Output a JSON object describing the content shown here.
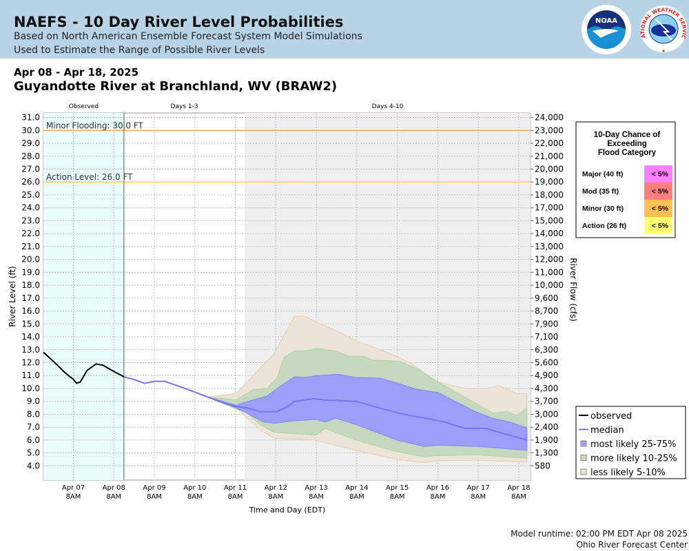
{
  "header": {
    "title": "NAEFS - 10 Day River Level Probabilities",
    "subtitle1": "Based on North American Ensemble Forecast System Model Simulations",
    "subtitle2": "Used to Estimate the Range of Possible River Levels",
    "logo1_text": "NOAA",
    "logo2_text": "NATIONAL WEATHER SERVICE"
  },
  "date_range": "Apr 08 - Apr 18, 2025",
  "station": "Guyandotte River at Branchland, WV (BRAW2)",
  "footer": {
    "runtime": "Model runtime: 02:00 PM EDT Apr 08 2025",
    "center": "Ohio River Forecast Center"
  },
  "colors": {
    "observed": "#000000",
    "median": "#7474f2",
    "band_25_75": "#9d9ef8",
    "band_10_25": "#c6d9c0",
    "band_5_10": "#ede4d9",
    "minor": "#f7a04a",
    "action": "#f5d21c",
    "obs_bg": "#e9fdfd",
    "days410_bg": "#efefef"
  },
  "chart_data": {
    "type": "area",
    "x_unit": "days after Apr 07 8AM EDT",
    "xlabel": "Time and Day (EDT)",
    "ylabel": "River Level (ft)",
    "y2label": "River Flow (cfs)",
    "ylim": [
      2.9,
      31.35
    ],
    "xlim": [
      -0.74,
      11.29
    ],
    "period_labels": [
      {
        "label": "Observed",
        "from": -0.74,
        "to": 1.25
      },
      {
        "label": "Days 1-3",
        "from": 1.25,
        "to": 4.23
      },
      {
        "label": "Days 4-10",
        "from": 4.23,
        "to": 11.29
      }
    ],
    "x_ticks": [
      {
        "d": 0,
        "l1": "Apr 07",
        "l2": "8AM"
      },
      {
        "d": 1,
        "l1": "Apr 08",
        "l2": "8AM"
      },
      {
        "d": 2,
        "l1": "Apr 09",
        "l2": "8AM"
      },
      {
        "d": 3,
        "l1": "Apr 10",
        "l2": "8AM"
      },
      {
        "d": 4,
        "l1": "Apr 11",
        "l2": "8AM"
      },
      {
        "d": 5,
        "l1": "Apr 12",
        "l2": "8AM"
      },
      {
        "d": 6,
        "l1": "Apr 13",
        "l2": "8AM"
      },
      {
        "d": 7,
        "l1": "Apr 14",
        "l2": "8AM"
      },
      {
        "d": 8,
        "l1": "Apr 15",
        "l2": "8AM"
      },
      {
        "d": 9,
        "l1": "Apr 16",
        "l2": "8AM"
      },
      {
        "d": 10,
        "l1": "Apr 17",
        "l2": "8AM"
      },
      {
        "d": 11,
        "l1": "Apr 18",
        "l2": "8AM"
      }
    ],
    "y_ticks": [
      "31.0",
      "30.0",
      "29.0",
      "28.0",
      "27.0",
      "26.0",
      "25.0",
      "24.0",
      "23.0",
      "22.0",
      "21.0",
      "20.0",
      "19.0",
      "18.0",
      "17.0",
      "16.0",
      "15.0",
      "14.0",
      "13.0",
      "12.0",
      "11.0",
      "10.0",
      "9.0",
      "8.0",
      "7.0",
      "6.0",
      "5.0",
      "4.0"
    ],
    "y2_ticks": [
      "24,000",
      "23,000",
      "22,000",
      "21,000",
      "20,000",
      "19,000",
      "18,000",
      "17,000",
      "15,000",
      "14,000",
      "13,000",
      "12,000",
      "11,000",
      "10,000",
      "9,600",
      "8,700",
      "7,900",
      "7,100",
      "6,300",
      "5,600",
      "4,900",
      "4,300",
      "3,700",
      "3,000",
      "2,400",
      "1,900",
      "1,300",
      "580"
    ],
    "thresholds": [
      {
        "label": "Minor Flooding: 30.0 FT",
        "value": 30.0,
        "color": "#f7a04a"
      },
      {
        "label": "Action Level: 26.0 FT",
        "value": 26.0,
        "color": "#f5d21c"
      }
    ],
    "observed": [
      [
        -0.74,
        12.8
      ],
      [
        -0.46,
        12.0
      ],
      [
        -0.2,
        11.2
      ],
      [
        0,
        10.7
      ],
      [
        0.08,
        10.4
      ],
      [
        0.17,
        10.5
      ],
      [
        0.34,
        11.4
      ],
      [
        0.56,
        11.9
      ],
      [
        0.73,
        11.8
      ],
      [
        1.01,
        11.3
      ],
      [
        1.25,
        10.9
      ]
    ],
    "median": [
      [
        1.25,
        10.9
      ],
      [
        1.49,
        10.7
      ],
      [
        1.76,
        10.4
      ],
      [
        2.01,
        10.55
      ],
      [
        2.25,
        10.55
      ],
      [
        2.67,
        10.1
      ],
      [
        3.01,
        9.7
      ],
      [
        3.34,
        9.3
      ],
      [
        3.77,
        8.8
      ],
      [
        4.02,
        8.6
      ],
      [
        4.27,
        8.5
      ],
      [
        4.61,
        8.2
      ],
      [
        5.03,
        8.2
      ],
      [
        5.29,
        8.6
      ],
      [
        5.46,
        9.0
      ],
      [
        5.96,
        9.2
      ],
      [
        6.22,
        9.1
      ],
      [
        6.98,
        9.0
      ],
      [
        7.65,
        8.4
      ],
      [
        8.16,
        8.0
      ],
      [
        8.67,
        7.7
      ],
      [
        9.17,
        7.4
      ],
      [
        9.68,
        6.9
      ],
      [
        10.19,
        6.9
      ],
      [
        10.52,
        6.6
      ],
      [
        11.2,
        6.0
      ]
    ],
    "bands": [
      {
        "name": "less likely 5-10%",
        "upper": [
          [
            3.3,
            9.35
          ],
          [
            4.02,
            9.6
          ],
          [
            4.95,
            12.66
          ],
          [
            5.46,
            15.6
          ],
          [
            5.71,
            15.6
          ],
          [
            5.96,
            15.2
          ],
          [
            6.47,
            14.5
          ],
          [
            6.98,
            13.7
          ],
          [
            7.4,
            13.2
          ],
          [
            7.91,
            12.6
          ],
          [
            8.33,
            11.95
          ],
          [
            9.0,
            10.5
          ],
          [
            9.68,
            10.0
          ],
          [
            10.15,
            10.0
          ],
          [
            10.52,
            10.2
          ],
          [
            10.95,
            9.6
          ],
          [
            11.2,
            9.6
          ]
        ],
        "lower": [
          [
            3.3,
            9.35
          ],
          [
            4.02,
            8.5
          ],
          [
            4.61,
            6.8
          ],
          [
            4.95,
            6.15
          ],
          [
            5.96,
            6.0
          ],
          [
            6.98,
            5.2
          ],
          [
            7.99,
            4.5
          ],
          [
            8.67,
            4.25
          ],
          [
            9.0,
            4.4
          ],
          [
            10.02,
            4.45
          ],
          [
            11.2,
            4.3
          ]
        ]
      },
      {
        "name": "more likely 10-25%",
        "upper": [
          [
            3.3,
            9.35
          ],
          [
            4.02,
            9.1
          ],
          [
            4.44,
            9.9
          ],
          [
            4.78,
            10.0
          ],
          [
            5.03,
            10.8
          ],
          [
            5.2,
            12.4
          ],
          [
            5.46,
            12.9
          ],
          [
            5.71,
            12.9
          ],
          [
            6.0,
            13.1
          ],
          [
            6.47,
            12.9
          ],
          [
            6.81,
            12.5
          ],
          [
            7.15,
            12.5
          ],
          [
            7.4,
            12.2
          ],
          [
            8.07,
            12.1
          ],
          [
            8.5,
            11.5
          ],
          [
            9.0,
            10.5
          ],
          [
            9.51,
            9.6
          ],
          [
            10.02,
            8.7
          ],
          [
            10.35,
            8.1
          ],
          [
            10.69,
            8.2
          ],
          [
            10.95,
            7.9
          ],
          [
            11.2,
            8.5
          ]
        ],
        "lower": [
          [
            3.3,
            9.35
          ],
          [
            4.02,
            8.4
          ],
          [
            4.27,
            8.2
          ],
          [
            4.61,
            7.2
          ],
          [
            4.95,
            6.6
          ],
          [
            5.46,
            6.5
          ],
          [
            6.0,
            6.4
          ],
          [
            6.22,
            6.9
          ],
          [
            6.98,
            6.0
          ],
          [
            7.99,
            5.1
          ],
          [
            8.67,
            4.7
          ],
          [
            9.0,
            4.8
          ],
          [
            10.02,
            4.85
          ],
          [
            11.2,
            4.6
          ]
        ]
      },
      {
        "name": "most likely 25-75%",
        "upper": [
          [
            3.3,
            9.35
          ],
          [
            4.02,
            8.7
          ],
          [
            4.27,
            8.95
          ],
          [
            4.53,
            9.2
          ],
          [
            4.78,
            9.4
          ],
          [
            5.12,
            10.2
          ],
          [
            5.46,
            10.9
          ],
          [
            5.71,
            10.85
          ],
          [
            6.0,
            11.0
          ],
          [
            6.3,
            11.05
          ],
          [
            6.55,
            11.1
          ],
          [
            6.98,
            10.85
          ],
          [
            7.57,
            10.8
          ],
          [
            7.91,
            10.5
          ],
          [
            8.41,
            10.0
          ],
          [
            8.75,
            9.8
          ],
          [
            9.0,
            9.7
          ],
          [
            9.43,
            9.0
          ],
          [
            9.93,
            8.2
          ],
          [
            10.35,
            7.7
          ],
          [
            10.78,
            7.4
          ],
          [
            11.2,
            6.95
          ]
        ],
        "lower": [
          [
            3.3,
            9.35
          ],
          [
            4.02,
            8.5
          ],
          [
            4.27,
            8.1
          ],
          [
            4.7,
            7.4
          ],
          [
            4.95,
            7.3
          ],
          [
            5.46,
            7.5
          ],
          [
            6.0,
            7.6
          ],
          [
            6.22,
            7.4
          ],
          [
            6.47,
            7.7
          ],
          [
            6.98,
            7.2
          ],
          [
            7.99,
            6.0
          ],
          [
            8.67,
            5.5
          ],
          [
            9.0,
            5.6
          ],
          [
            10.02,
            5.5
          ],
          [
            11.2,
            5.2
          ]
        ]
      }
    ],
    "legend": {
      "placement": "bottom-right",
      "items": [
        {
          "label": "observed",
          "type": "line",
          "color": "#000000"
        },
        {
          "label": "median",
          "type": "line",
          "color": "#7474f2"
        },
        {
          "label": "most likely 25-75%",
          "type": "box",
          "color": "#9d9ef8"
        },
        {
          "label": "more likely 10-25%",
          "type": "box",
          "color": "#c6d9c0"
        },
        {
          "label": "less likely 5-10%",
          "type": "box",
          "color": "#ede4d9"
        }
      ]
    },
    "flood_table": {
      "title": [
        "10-Day Chance of",
        "Exceeding",
        "Flood Category"
      ],
      "rows": [
        {
          "label": "Major (40 ft)",
          "value": "< 5%",
          "color": "#ff80ff"
        },
        {
          "label": "Mod (35 ft)",
          "value": "< 5%",
          "color": "#ff7f7f"
        },
        {
          "label": "Minor (30 ft)",
          "value": "< 5%",
          "color": "#ffbf55"
        },
        {
          "label": "Action (26 ft)",
          "value": "< 5%",
          "color": "#ffff72"
        }
      ]
    }
  }
}
